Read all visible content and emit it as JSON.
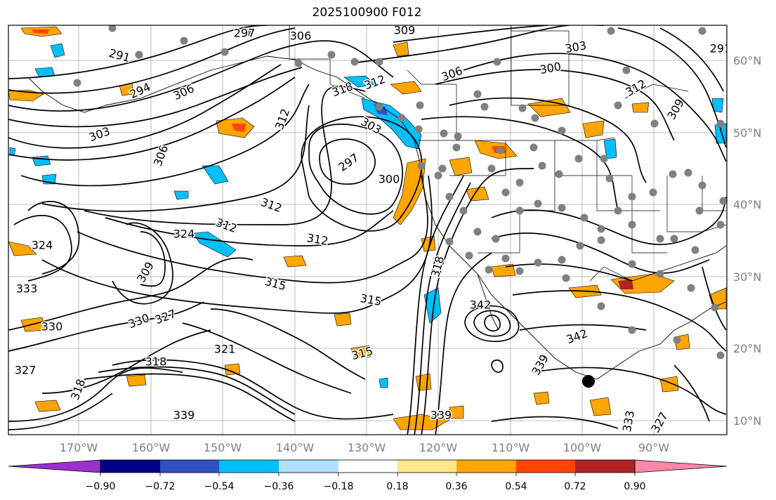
{
  "title": "2025100900 F012",
  "map": {
    "lon_ticks": [
      "170°W",
      "160°W",
      "150°W",
      "140°W",
      "130°W",
      "120°W",
      "110°W",
      "100°W",
      "90°W"
    ],
    "lat_ticks": [
      "60°N",
      "50°N",
      "40°N",
      "30°N",
      "20°N",
      "10°N"
    ],
    "contour_labels": [
      {
        "text": "297",
        "rot": 0
      },
      {
        "text": "306",
        "rot": 0
      },
      {
        "text": "309",
        "rot": 0
      },
      {
        "text": "291",
        "rot": 0
      },
      {
        "text": "291",
        "rot": 15
      },
      {
        "text": "294",
        "rot": -25
      },
      {
        "text": "306",
        "rot": -25
      },
      {
        "text": "303",
        "rot": -20
      },
      {
        "text": "306",
        "rot": -70
      },
      {
        "text": "312",
        "rot": -70
      },
      {
        "text": "318",
        "rot": -20
      },
      {
        "text": "312",
        "rot": -20
      },
      {
        "text": "303",
        "rot": 30
      },
      {
        "text": "297",
        "rot": -35
      },
      {
        "text": "300",
        "rot": 0
      },
      {
        "text": "306",
        "rot": -20
      },
      {
        "text": "303",
        "rot": -10
      },
      {
        "text": "300",
        "rot": -10
      },
      {
        "text": "312",
        "rot": -30
      },
      {
        "text": "309",
        "rot": -60
      },
      {
        "text": "312",
        "rot": 20
      },
      {
        "text": "312",
        "rot": 20
      },
      {
        "text": "312",
        "rot": 10
      },
      {
        "text": "324",
        "rot": 0
      },
      {
        "text": "309",
        "rot": -60
      },
      {
        "text": "315",
        "rot": 15
      },
      {
        "text": "315",
        "rot": 10
      },
      {
        "text": "324",
        "rot": 0
      },
      {
        "text": "330",
        "rot": -20
      },
      {
        "text": "327",
        "rot": -20
      },
      {
        "text": "321",
        "rot": 0
      },
      {
        "text": "318",
        "rot": 0
      },
      {
        "text": "318",
        "rot": -70
      },
      {
        "text": "327",
        "rot": 0
      },
      {
        "text": "339",
        "rot": 0
      },
      {
        "text": "339",
        "rot": 0
      },
      {
        "text": "315",
        "rot": -15
      },
      {
        "text": "318",
        "rot": -75
      },
      {
        "text": "342",
        "rot": 0
      },
      {
        "text": "342",
        "rot": -20
      },
      {
        "text": "339",
        "rot": -60
      },
      {
        "text": "333",
        "rot": -80
      },
      {
        "text": "327",
        "rot": -60
      },
      {
        "text": "333",
        "rot": 0
      },
      {
        "text": "330",
        "rot": 0
      }
    ]
  },
  "colorbar": {
    "tick_labels": [
      "−0.90",
      "−0.72",
      "−0.54",
      "−0.36",
      "−0.18",
      "0.18",
      "0.36",
      "0.54",
      "0.72",
      "0.90"
    ],
    "colors": [
      "#9b30d0",
      "#00008b",
      "#3050c8",
      "#00bfff",
      "#aee2ff",
      "#ffffff",
      "#ffe88a",
      "#ffa500",
      "#ff4500",
      "#b22222",
      "#ff88aa"
    ]
  }
}
